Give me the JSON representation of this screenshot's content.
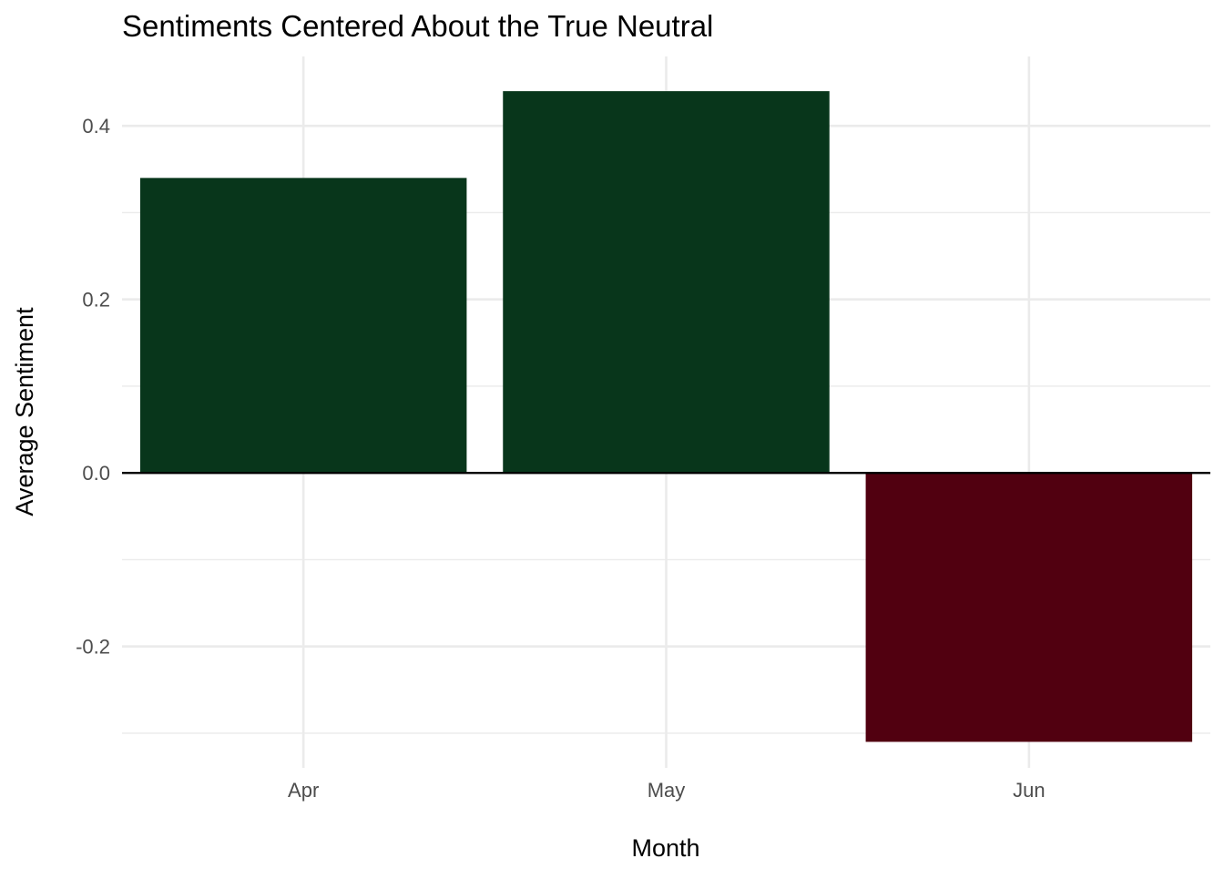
{
  "chart_data": {
    "type": "bar",
    "title": "Sentiments Centered About the True Neutral",
    "xlabel": "Month",
    "ylabel": "Average Sentiment",
    "categories": [
      "Apr",
      "May",
      "Jun"
    ],
    "values": [
      0.34,
      0.44,
      -0.31
    ],
    "ylim": [
      -0.34,
      0.48
    ],
    "y_ticks": [
      "0.4",
      "0.2",
      "0.0",
      "-0.2"
    ],
    "grid": true,
    "legend": "none",
    "colors": {
      "positive": "#08361B",
      "negative": "#510010",
      "gridline": "#EBEBEB",
      "baseline": "#000000"
    }
  }
}
